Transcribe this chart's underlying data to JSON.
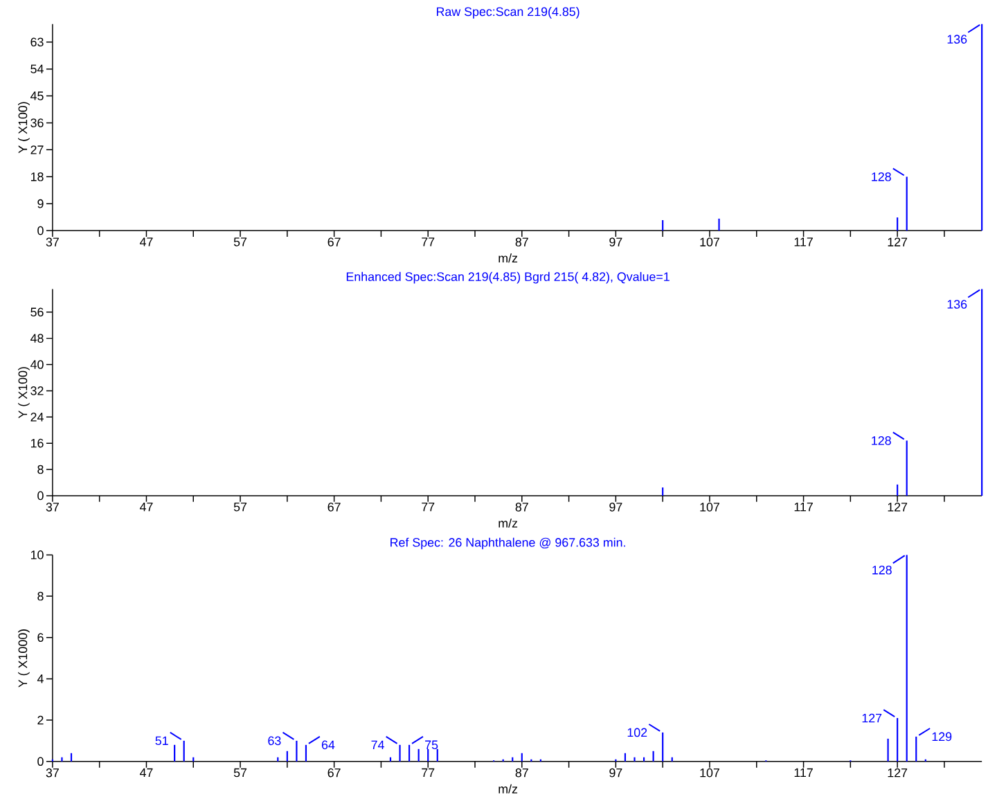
{
  "chart_data": [
    {
      "type": "bar",
      "title": "Raw Spec:Scan 219(4.85)",
      "xlabel": "m/z",
      "ylabel": "Y ( X100)",
      "color": "#0000ff",
      "x": [
        102,
        108,
        127,
        128,
        136
      ],
      "values": [
        3.5,
        4,
        4.4,
        18,
        69
      ],
      "xlim": [
        37,
        136
      ],
      "ylim": [
        0,
        69
      ],
      "xticks": [
        37,
        {
          "value": 42,
          "label": null
        },
        47,
        {
          "value": 52,
          "label": null
        },
        57,
        {
          "value": 62,
          "label": null
        },
        67,
        {
          "value": 72,
          "label": null
        },
        77,
        {
          "value": 82,
          "label": null
        },
        87,
        {
          "value": 92,
          "label": null
        },
        97,
        {
          "value": 102,
          "label": null
        },
        107,
        {
          "value": 112,
          "label": null
        },
        117,
        {
          "value": 122,
          "label": null
        },
        127,
        {
          "value": 132,
          "label": null
        }
      ],
      "yticks": [
        0,
        9,
        18,
        27,
        36,
        45,
        54,
        63
      ],
      "annotations": [
        {
          "text": "128",
          "x": 128,
          "y": 18
        },
        {
          "text": "136",
          "x": 136,
          "y": 69
        }
      ]
    },
    {
      "type": "bar",
      "title": "Enhanced Spec:Scan 219(4.85) Bgrd 215( 4.82), Qvalue=1",
      "xlabel": "m/z",
      "ylabel": "Y ( X100)",
      "color": "#0000ff",
      "x": [
        102,
        127,
        128,
        136
      ],
      "values": [
        2.5,
        3.4,
        16.8,
        63
      ],
      "xlim": [
        37,
        136
      ],
      "ylim": [
        0,
        63
      ],
      "xticks": [
        37,
        {
          "value": 42,
          "label": null
        },
        47,
        {
          "value": 52,
          "label": null
        },
        57,
        {
          "value": 62,
          "label": null
        },
        67,
        {
          "value": 72,
          "label": null
        },
        77,
        {
          "value": 82,
          "label": null
        },
        87,
        {
          "value": 92,
          "label": null
        },
        97,
        {
          "value": 102,
          "label": null
        },
        107,
        {
          "value": 112,
          "label": null
        },
        117,
        {
          "value": 122,
          "label": null
        },
        127,
        {
          "value": 132,
          "label": null
        }
      ],
      "yticks": [
        0,
        8,
        16,
        24,
        32,
        40,
        48,
        56
      ],
      "annotations": [
        {
          "text": "128",
          "x": 128,
          "y": 16.8
        },
        {
          "text": "136",
          "x": 136,
          "y": 63
        }
      ]
    },
    {
      "type": "bar",
      "title": "Ref Spec:   26 Naphthalene @ 967.633 min.",
      "xlabel": "m/z",
      "ylabel": "Y ( X1000)",
      "color": "#0000ff",
      "x": [
        37,
        38,
        39,
        50,
        51,
        52,
        61,
        62,
        63,
        64,
        73,
        74,
        75,
        76,
        77,
        78,
        84,
        85,
        86,
        87,
        88,
        89,
        97,
        98,
        99,
        100,
        101,
        102,
        103,
        113,
        122,
        126,
        127,
        128,
        129,
        130
      ],
      "values": [
        0.1,
        0.2,
        0.4,
        0.8,
        1.0,
        0.2,
        0.2,
        0.5,
        1.0,
        0.8,
        0.2,
        0.8,
        0.8,
        0.6,
        0.6,
        0.6,
        0.05,
        0.1,
        0.2,
        0.4,
        0.1,
        0.1,
        0.1,
        0.4,
        0.2,
        0.2,
        0.5,
        1.4,
        0.2,
        0.05,
        0.05,
        1.1,
        2.1,
        10,
        1.2,
        0.1
      ],
      "xlim": [
        37,
        136
      ],
      "ylim": [
        0,
        10
      ],
      "xticks": [
        37,
        {
          "value": 42,
          "label": null
        },
        47,
        {
          "value": 52,
          "label": null
        },
        57,
        {
          "value": 62,
          "label": null
        },
        67,
        {
          "value": 72,
          "label": null
        },
        77,
        {
          "value": 82,
          "label": null
        },
        87,
        {
          "value": 92,
          "label": null
        },
        97,
        {
          "value": 102,
          "label": null
        },
        107,
        {
          "value": 112,
          "label": null
        },
        117,
        {
          "value": 122,
          "label": null
        },
        127,
        {
          "value": 132,
          "label": null
        }
      ],
      "yticks": [
        0,
        2,
        4,
        6,
        8,
        10
      ],
      "annotations": [
        {
          "text": "51",
          "x": 51,
          "y": 1.0
        },
        {
          "text": "63",
          "x": 63,
          "y": 1.0
        },
        {
          "text": "64",
          "x": 64,
          "y": 0.8
        },
        {
          "text": "74",
          "x": 74,
          "y": 0.8
        },
        {
          "text": "75",
          "x": 75,
          "y": 0.8
        },
        {
          "text": "102",
          "x": 102,
          "y": 1.4
        },
        {
          "text": "127",
          "x": 127,
          "y": 2.1
        },
        {
          "text": "128",
          "x": 128,
          "y": 10
        },
        {
          "text": "129",
          "x": 129,
          "y": 1.2
        }
      ]
    }
  ]
}
